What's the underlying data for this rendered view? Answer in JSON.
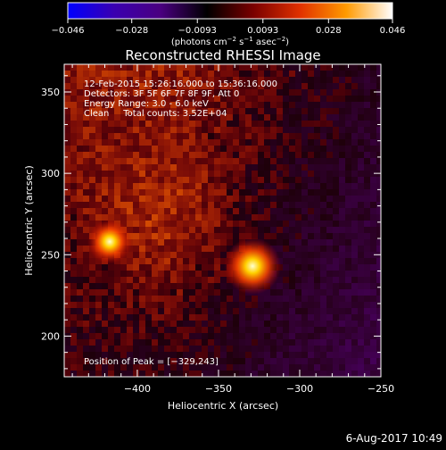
{
  "chart_data": {
    "type": "heatmap",
    "title": "Reconstructed RHESSI Image",
    "xlabel": "Heliocentric X (arcsec)",
    "ylabel": "Heliocentric Y (arcsec)",
    "xlim": [
      -445,
      -250
    ],
    "ylim": [
      175,
      367
    ],
    "x_ticks": [
      -400,
      -350,
      -300,
      -250
    ],
    "y_ticks": [
      200,
      250,
      300,
      350
    ],
    "x_tick_labels": [
      "−400",
      "−350",
      "−300",
      "−250"
    ],
    "y_tick_labels": [
      "200",
      "250",
      "300",
      "350"
    ],
    "colorbar": {
      "min": -0.046,
      "max": 0.046,
      "tick_labels": [
        "−0.046",
        "−0.028",
        "−0.0093",
        "0.0093",
        "0.028",
        "0.046"
      ],
      "unit_prefix": "(photons cm",
      "unit_exp1": "−2",
      "unit_mid": " s",
      "unit_exp2": "−1",
      "unit_mid2": " asec",
      "unit_exp3": "−2",
      "unit_suffix": ")",
      "colors": [
        "#0000ff",
        "#3a00b0",
        "#4a0080",
        "#000000",
        "#7a0000",
        "#e03000",
        "#ff9a00",
        "#ffffff"
      ]
    },
    "sources": [
      {
        "x": -329,
        "y": 243,
        "intensity": 0.046
      },
      {
        "x": -417,
        "y": 258,
        "intensity": 0.036
      }
    ],
    "peak_label": "Position of Peak = [−329,243]"
  },
  "info": {
    "line1": "12-Feb-2015 15:26:16.000 to 15:36:16.000",
    "line2": "Detectors: 3F 5F 6F 7F 8F 9F, Att 0",
    "line3": "Energy Range: 3.0 - 6.0 keV",
    "line4": "Clean     Total counts: 3.52E+04"
  },
  "footer": "6-Aug-2017 10:49"
}
